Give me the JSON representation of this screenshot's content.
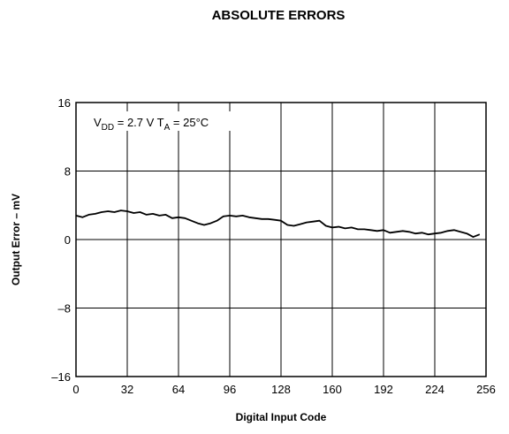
{
  "chart_data": {
    "type": "line",
    "title": "ABSOLUTE ERRORS",
    "xlabel": "Digital Input Code",
    "ylabel": "Output Error – mV",
    "xlim": [
      0,
      256
    ],
    "ylim": [
      -16,
      16
    ],
    "x_ticks": [
      "0",
      "32",
      "64",
      "96",
      "128",
      "160",
      "192",
      "224",
      "256"
    ],
    "y_ticks": [
      "16",
      "8",
      "0",
      "–8",
      "–16"
    ],
    "grid": true,
    "annotation": {
      "v_main": "V",
      "v_sub": "DD",
      "v_rest": " = 2.7 V T",
      "t_sub": "A",
      "t_rest": " = 25°C"
    },
    "series": [
      {
        "x": [
          0,
          4,
          8,
          12,
          16,
          20,
          24,
          28,
          32,
          36,
          40,
          44,
          48,
          52,
          56,
          60,
          64,
          68,
          72,
          76,
          80,
          84,
          88,
          92,
          96,
          100,
          104,
          108,
          112,
          116,
          120,
          124,
          128,
          132,
          136,
          140,
          144,
          148,
          152,
          156,
          160,
          164,
          168,
          172,
          176,
          180,
          184,
          188,
          192,
          196,
          200,
          204,
          208,
          212,
          216,
          220,
          224,
          228,
          232,
          236,
          240,
          244,
          248,
          252
        ],
        "y": [
          2.8,
          2.6,
          2.9,
          3.0,
          3.2,
          3.3,
          3.2,
          3.4,
          3.3,
          3.1,
          3.2,
          2.9,
          3.0,
          2.8,
          2.9,
          2.5,
          2.6,
          2.5,
          2.2,
          1.9,
          1.7,
          1.9,
          2.2,
          2.7,
          2.8,
          2.7,
          2.8,
          2.6,
          2.5,
          2.4,
          2.4,
          2.3,
          2.2,
          1.7,
          1.6,
          1.8,
          2.0,
          2.1,
          2.2,
          1.6,
          1.4,
          1.5,
          1.3,
          1.4,
          1.2,
          1.2,
          1.1,
          1.0,
          1.1,
          0.8,
          0.9,
          1.0,
          0.9,
          0.7,
          0.8,
          0.6,
          0.7,
          0.8,
          1.0,
          1.1,
          0.9,
          0.7,
          0.3,
          0.6
        ]
      }
    ]
  }
}
